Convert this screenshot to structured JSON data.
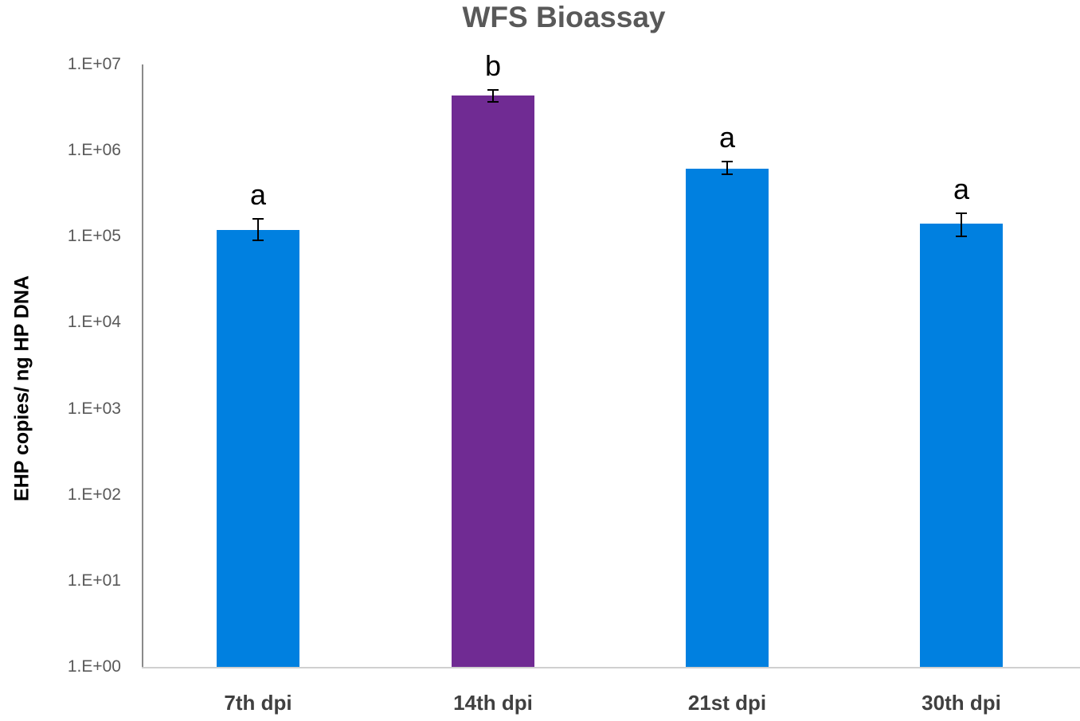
{
  "chart_data": {
    "type": "bar",
    "title": "WFS Bioassay",
    "xlabel": "",
    "ylabel": "EHP copies/ ng HP DNA",
    "yscale": "log",
    "ylim": [
      1,
      10000000
    ],
    "yticks": [
      "1.E+00",
      "1.E+01",
      "1.E+02",
      "1.E+03",
      "1.E+04",
      "1.E+05",
      "1.E+06",
      "1.E+07"
    ],
    "categories": [
      "7th dpi",
      "14th dpi",
      "21st dpi",
      "30th dpi"
    ],
    "values": [
      120000,
      4400000,
      620000,
      140000
    ],
    "error_low": [
      90000,
      3700000,
      530000,
      100000
    ],
    "error_high": [
      160000,
      5100000,
      740000,
      185000
    ],
    "significance_letters": [
      "a",
      "b",
      "a",
      "a"
    ],
    "bar_colors": [
      "#0080e0",
      "#702b93",
      "#0080e0",
      "#0080e0"
    ],
    "grid": false,
    "legend": null
  }
}
